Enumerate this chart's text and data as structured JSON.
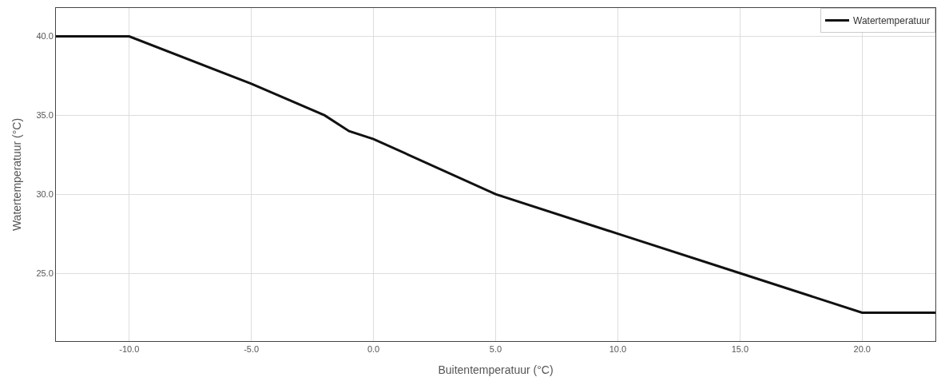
{
  "chart_data": {
    "type": "line",
    "xlabel": "Buitentemperatuur (°C)",
    "ylabel": "Watertemperatuur (°C)",
    "x": [
      -13,
      -10,
      -5,
      -2,
      -1,
      0,
      5,
      10,
      15,
      20,
      23
    ],
    "series": [
      {
        "name": "Watertemperatuur",
        "color": "#111111",
        "values": [
          40,
          40,
          37,
          35,
          34,
          33.5,
          30,
          27.5,
          25,
          22.5,
          22.5
        ]
      }
    ],
    "xlim": [
      -13,
      23
    ],
    "ylim": [
      20.7,
      41.8
    ],
    "xticks": [
      {
        "value": -10,
        "label": "-10.0"
      },
      {
        "value": -5,
        "label": "-5.0"
      },
      {
        "value": 0,
        "label": "0.0"
      },
      {
        "value": 5,
        "label": "5.0"
      },
      {
        "value": 10,
        "label": "10.0"
      },
      {
        "value": 15,
        "label": "15.0"
      },
      {
        "value": 20,
        "label": "20.0"
      }
    ],
    "yticks": [
      {
        "value": 25,
        "label": "25.0"
      },
      {
        "value": 30,
        "label": "30.0"
      },
      {
        "value": 35,
        "label": "35.0"
      },
      {
        "value": 40,
        "label": "40.0"
      }
    ],
    "grid": true,
    "legend": "top right",
    "marker": "none",
    "line_style": "solid"
  }
}
